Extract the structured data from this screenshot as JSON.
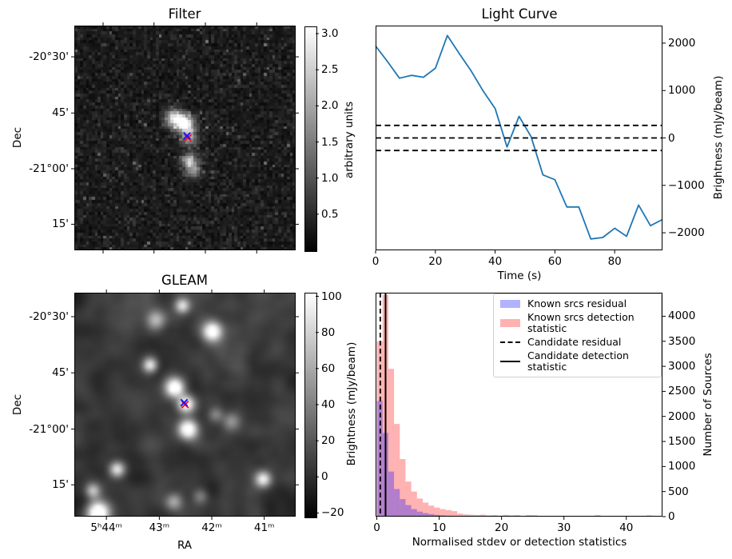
{
  "figure": {
    "background": "#ffffff"
  },
  "panels": {
    "filter": {
      "title": "Filter",
      "ylabel": "Dec",
      "ytick_labels": [
        "-20°30'",
        "45'",
        "-21°00'",
        "15'"
      ],
      "colorbar": {
        "label": "arbitrary units",
        "ticks": [
          "3.0",
          "2.5",
          "2.0",
          "1.5",
          "1.0",
          "0.5"
        ]
      }
    },
    "light_curve": {
      "title": "Light Curve",
      "xlabel": "Time (s)",
      "ylabel": "Brightness (mJy/beam)",
      "xtick_labels": [
        "0",
        "20",
        "40",
        "60",
        "80"
      ],
      "ytick_labels": [
        "2000",
        "1000",
        "0",
        "−1000",
        "−2000"
      ]
    },
    "gleam": {
      "title": "GLEAM",
      "xlabel": "RA",
      "ylabel": "Dec",
      "xtick_labels": [
        "5ʰ44ᵐ",
        "43ᵐ",
        "42ᵐ",
        "41ᵐ"
      ],
      "ytick_labels": [
        "-20°30'",
        "45'",
        "-21°00'",
        "15'"
      ],
      "colorbar": {
        "label": "Brightness (mJy/beam)",
        "ticks": [
          "100",
          "80",
          "60",
          "40",
          "20",
          "0",
          "−20"
        ]
      }
    },
    "histogram": {
      "xlabel": "Normalised stdev or detection statistics",
      "ylabel": "Number of Sources",
      "xtick_labels": [
        "0",
        "10",
        "20",
        "30",
        "40"
      ],
      "ytick_labels": [
        "0",
        "500",
        "1000",
        "1500",
        "2000",
        "2500",
        "3000",
        "3500",
        "4000"
      ]
    }
  },
  "chart_data": [
    {
      "type": "heatmap",
      "title": "Filter",
      "ylabel": "Dec",
      "colorbar_label": "arbitrary units",
      "value_range": [
        0,
        3.1
      ],
      "colorbar_tick_values": [
        3.0,
        2.5,
        2.0,
        1.5,
        1.0,
        0.5
      ],
      "grid": 76,
      "noise_seed": 42,
      "marker": {
        "x_frac": 0.509,
        "y_frac": 0.491,
        "front_color": "#1414ff",
        "back_color": "#ff1414"
      },
      "blobs": [
        {
          "x": 0.447,
          "y": 0.408,
          "amp": 2.4,
          "sigma": 2.2
        },
        {
          "x": 0.496,
          "y": 0.432,
          "amp": 2.9,
          "sigma": 2.0
        },
        {
          "x": 0.513,
          "y": 0.492,
          "amp": 1.5,
          "sigma": 2.0
        },
        {
          "x": 0.514,
          "y": 0.598,
          "amp": 2.1,
          "sigma": 1.8
        },
        {
          "x": 0.533,
          "y": 0.645,
          "amp": 1.3,
          "sigma": 1.6
        }
      ]
    },
    {
      "type": "line",
      "title": "Light Curve",
      "xlabel": "Time (s)",
      "ylabel": "Brightness (mJy/beam)",
      "xlim": [
        0,
        96
      ],
      "ylim": [
        -2370,
        2370
      ],
      "xticks": [
        0,
        20,
        40,
        60,
        80
      ],
      "yticks": [
        2000,
        1000,
        0,
        -1000,
        -2000
      ],
      "line_color": "#1f77b4",
      "hlines": [
        265,
        0,
        -265
      ],
      "x": [
        0,
        4,
        8,
        12,
        16,
        20,
        24,
        28,
        32,
        36,
        40,
        44,
        48,
        52,
        56,
        60,
        64,
        68,
        72,
        76,
        80,
        84,
        88,
        92,
        96
      ],
      "y": [
        1940,
        1610,
        1260,
        1320,
        1280,
        1470,
        2160,
        1780,
        1410,
        990,
        620,
        -190,
        455,
        30,
        -780,
        -880,
        -1455,
        -1455,
        -2130,
        -2100,
        -1905,
        -2075,
        -1415,
        -1850,
        -1720
      ]
    },
    {
      "type": "heatmap",
      "title": "GLEAM",
      "xlabel": "RA",
      "ylabel": "Dec",
      "colorbar_label": "Brightness (mJy/beam)",
      "value_range": [
        -22,
        102
      ],
      "colorbar_tick_values": [
        100,
        80,
        60,
        40,
        20,
        0,
        -20
      ],
      "grid": 56,
      "noise_seed": 7,
      "marker": {
        "x_frac": 0.496,
        "y_frac": 0.491,
        "front_color": "#1414ff",
        "back_color": "#ff1414"
      },
      "blobs": [
        {
          "x": 0.48,
          "y": 0.05,
          "amp": 85,
          "sigma": 1.3
        },
        {
          "x": 0.36,
          "y": 0.115,
          "amp": 60,
          "sigma": 1.7
        },
        {
          "x": 0.615,
          "y": 0.165,
          "amp": 115,
          "sigma": 1.7
        },
        {
          "x": 0.335,
          "y": 0.315,
          "amp": 90,
          "sigma": 1.3
        },
        {
          "x": 0.445,
          "y": 0.415,
          "amp": 125,
          "sigma": 1.7
        },
        {
          "x": 0.497,
          "y": 0.49,
          "amp": 110,
          "sigma": 1.5
        },
        {
          "x": 0.505,
          "y": 0.6,
          "amp": 125,
          "sigma": 1.7
        },
        {
          "x": 0.7,
          "y": 0.565,
          "amp": 48,
          "sigma": 1.6
        },
        {
          "x": 0.63,
          "y": 0.535,
          "amp": 40,
          "sigma": 1.3
        },
        {
          "x": 0.185,
          "y": 0.78,
          "amp": 95,
          "sigma": 1.4
        },
        {
          "x": 0.845,
          "y": 0.825,
          "amp": 95,
          "sigma": 1.4
        },
        {
          "x": 0.075,
          "y": 0.875,
          "amp": 68,
          "sigma": 1.3
        },
        {
          "x": 0.1,
          "y": 0.975,
          "amp": 135,
          "sigma": 2.0
        },
        {
          "x": 0.44,
          "y": 0.925,
          "amp": 58,
          "sigma": 1.5
        },
        {
          "x": 0.56,
          "y": 0.9,
          "amp": 35,
          "sigma": 1.3
        }
      ]
    },
    {
      "type": "bar",
      "subtype": "histogram",
      "xlabel": "Normalised stdev or detection statistics",
      "ylabel": "Number of Sources",
      "xlim": [
        -0.2,
        45.8
      ],
      "ylim": [
        0,
        4470
      ],
      "xticks": [
        0,
        10,
        20,
        30,
        40
      ],
      "yticks": [
        0,
        500,
        1000,
        1500,
        2000,
        2500,
        3000,
        3500,
        4000
      ],
      "bin_start": 0,
      "bin_width": 0.92,
      "series": [
        {
          "name": "Known srcs residual",
          "color": "rgba(0,0,255,0.3)",
          "values": [
            2310,
            1670,
            900,
            550,
            350,
            230,
            150,
            100,
            70,
            50,
            35,
            25,
            18,
            12,
            8,
            5,
            3,
            2,
            1,
            1,
            0,
            0,
            0,
            0,
            0,
            0,
            0,
            0,
            0,
            0,
            0,
            0,
            0,
            0,
            0,
            0,
            0,
            0,
            0,
            0,
            0,
            0,
            0,
            0,
            0,
            0,
            0,
            0,
            0,
            0
          ]
        },
        {
          "name": "Known srcs detection statistic",
          "color": "rgba(255,0,0,0.3)",
          "values": [
            3500,
            4430,
            2950,
            1850,
            1150,
            700,
            500,
            360,
            280,
            220,
            180,
            150,
            130,
            110,
            60,
            45,
            38,
            32,
            40,
            25,
            30,
            20,
            35,
            25,
            30,
            15,
            30,
            28,
            10,
            8,
            6,
            5,
            4,
            4,
            3,
            3,
            3,
            3,
            30,
            4,
            3,
            2,
            2,
            2,
            2,
            2,
            2,
            25,
            2,
            1
          ]
        }
      ],
      "vlines": [
        {
          "name": "Candidate residual",
          "x": 0.55,
          "style": "dashed",
          "color": "#000000"
        },
        {
          "name": "Candidate detection statistic",
          "x": 1.4,
          "style": "solid",
          "color": "#000000"
        }
      ],
      "legend_position": "upper right"
    }
  ]
}
